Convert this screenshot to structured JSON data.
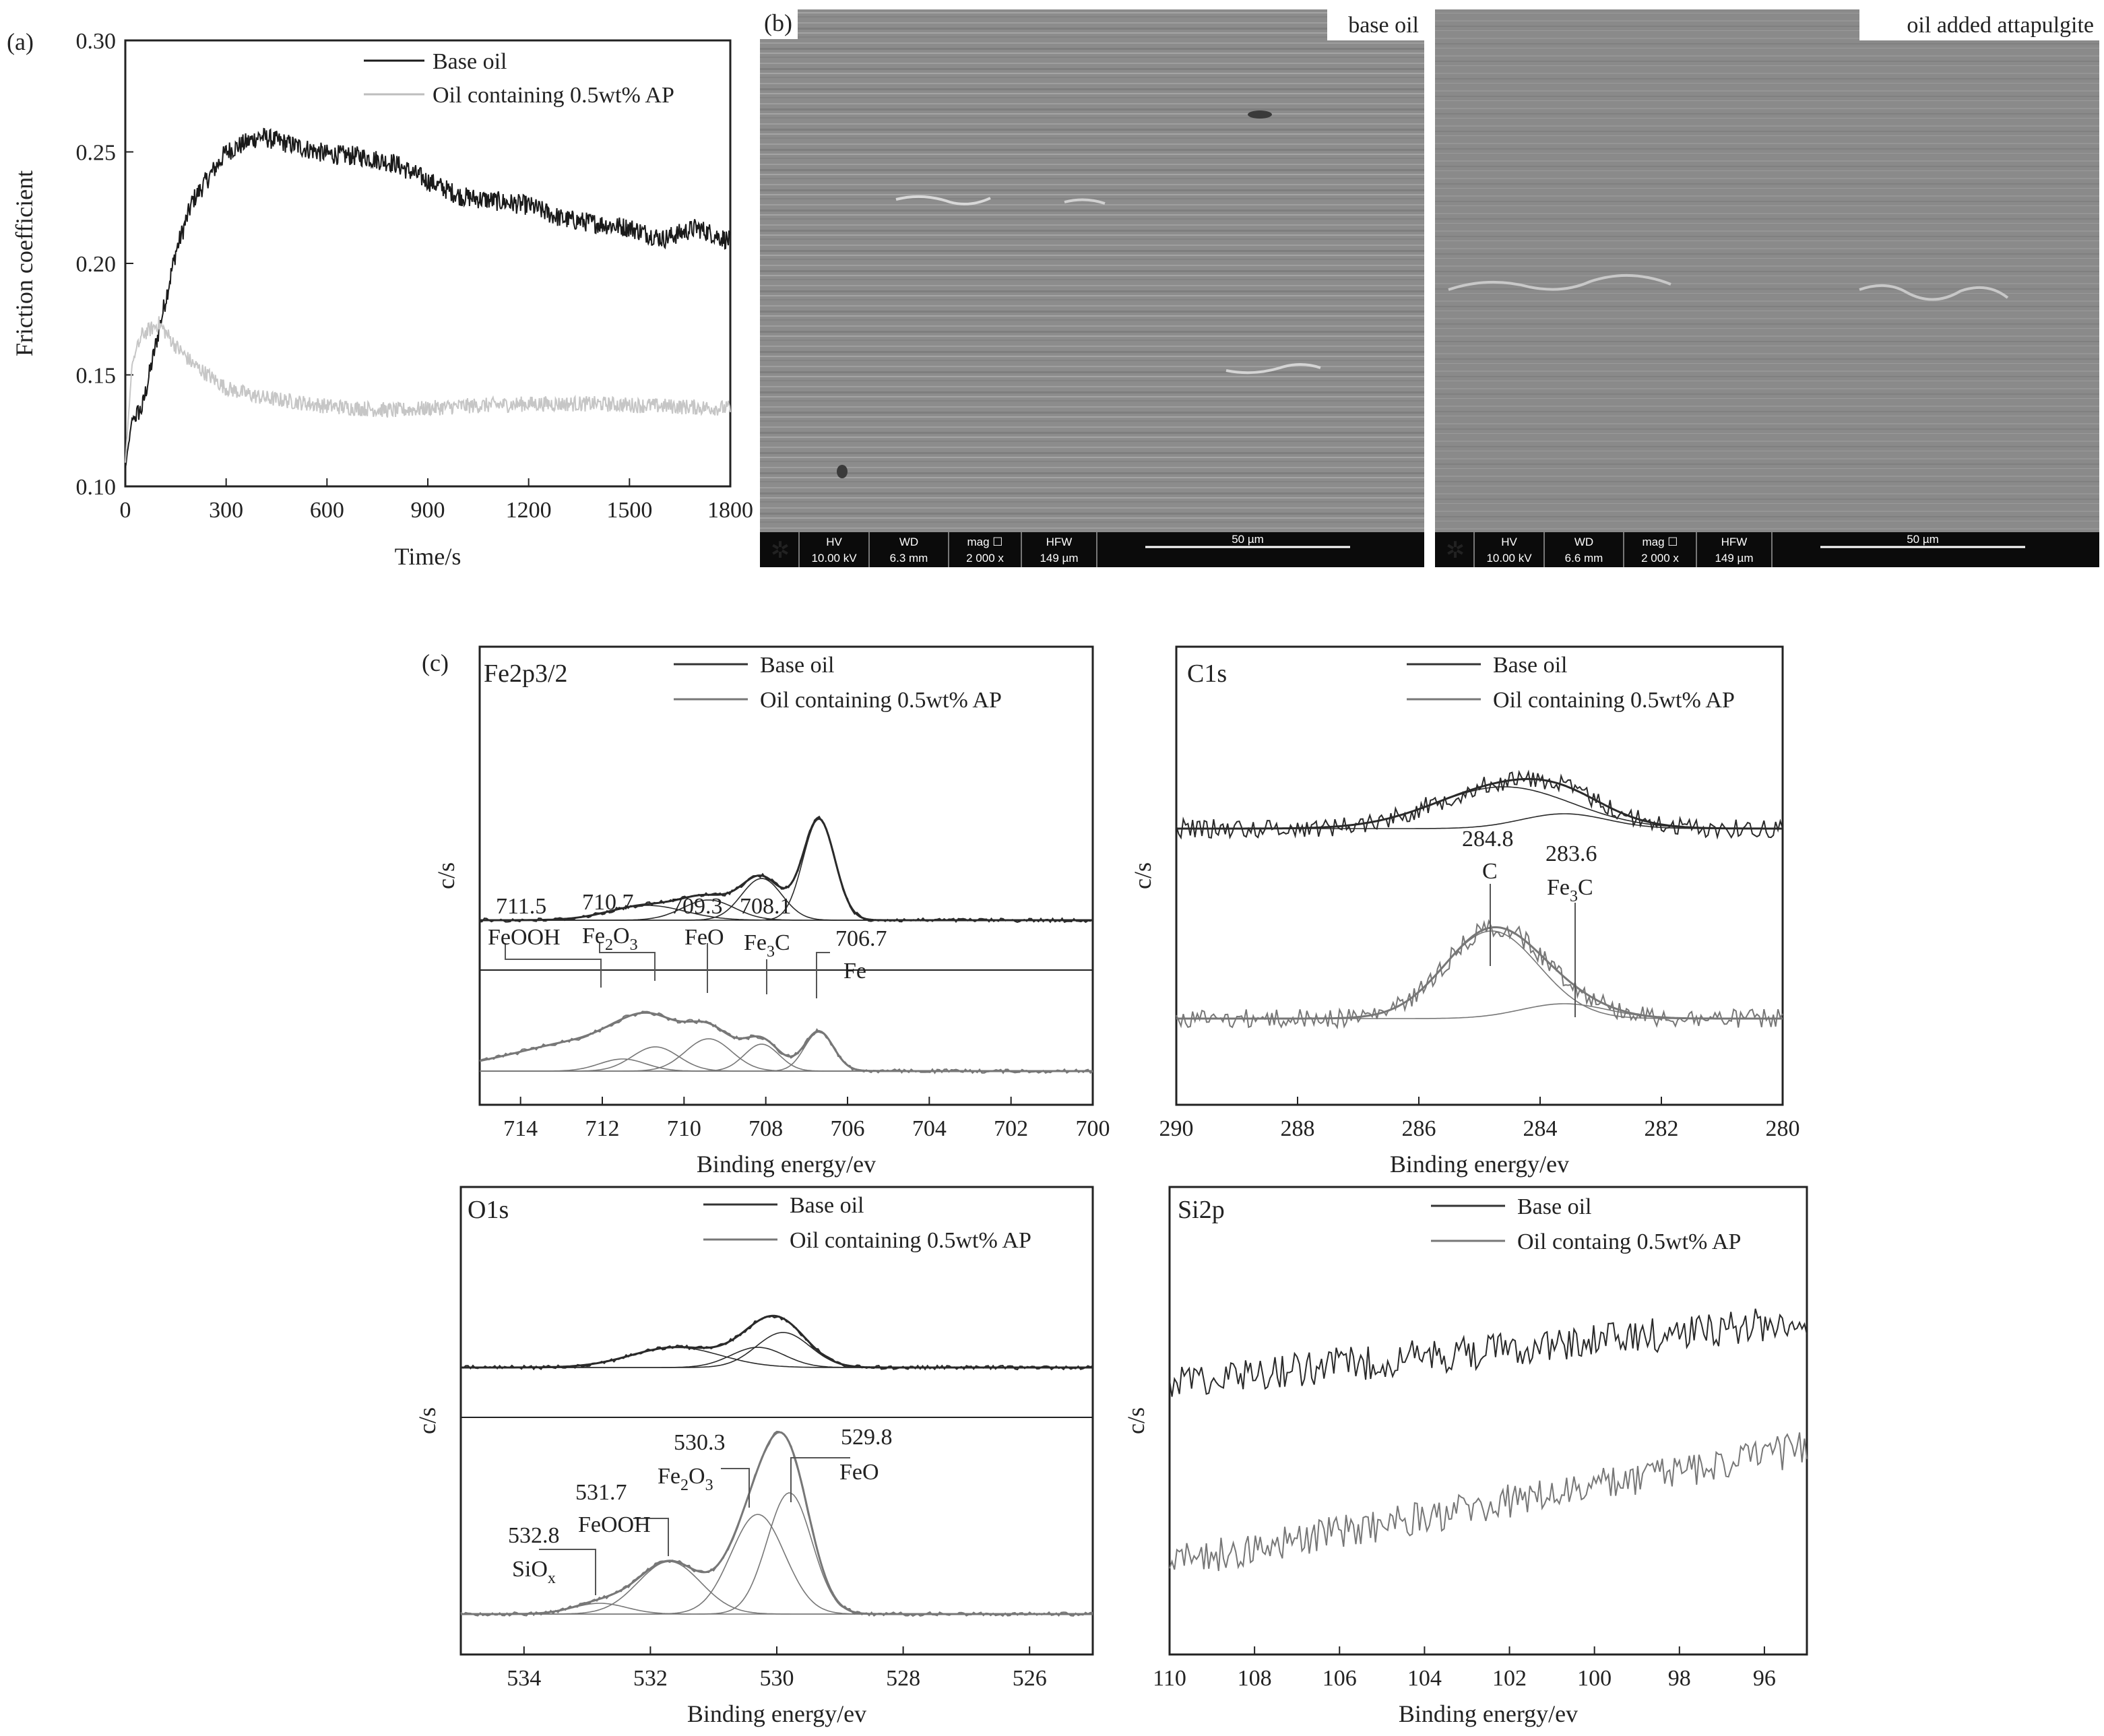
{
  "colors": {
    "series_base": "#1a1a1a",
    "series_ap": "#a8a8a8",
    "series_ap_dark": "#6e6e6e",
    "sem_bg": "#8f8f8f",
    "sem_bar": "#0b0b0b"
  },
  "panel_a": {
    "panel_label": "(a)",
    "xlabel": "Time/s",
    "ylabel": "Friction coefficient",
    "xticks": [
      "0",
      "300",
      "600",
      "900",
      "1200",
      "1500",
      "1800"
    ],
    "yticks": [
      "0.10",
      "0.15",
      "0.20",
      "0.25",
      "0.30"
    ],
    "legend": [
      "Base oil",
      "Oil containing 0.5wt% AP"
    ]
  },
  "panel_b": {
    "panel_label": "(b)",
    "images": [
      {
        "caption": "base oil",
        "hv_label": "HV",
        "hv": "10.00 kV",
        "wd_label": "WD",
        "wd": "6.3 mm",
        "mag_label": "mag ☐",
        "mag": "2 000 x",
        "hfw_label": "HFW",
        "hfw": "149 µm",
        "scale": "50 µm"
      },
      {
        "caption": "oil added attapulgite",
        "hv_label": "HV",
        "hv": "10.00 kV",
        "wd_label": "WD",
        "wd": "6.6 mm",
        "mag_label": "mag ☐",
        "mag": "2 000 x",
        "hfw_label": "HFW",
        "hfw": "149 µm",
        "scale": "50 µm"
      }
    ]
  },
  "panel_c": {
    "panel_label": "(c)",
    "plots": [
      {
        "title": "Fe2p3/2",
        "xlabel": "Binding energy/ev",
        "ylabel": "c/s",
        "xticks": [
          "714",
          "712",
          "710",
          "708",
          "706",
          "704",
          "702",
          "700"
        ],
        "legend": [
          "Base oil",
          "Oil containing 0.5wt% AP"
        ],
        "peaks": [
          {
            "energy": "711.5",
            "species": "FeOOH"
          },
          {
            "energy": "710.7",
            "species": "Fe2O3"
          },
          {
            "energy": "709.3",
            "species": "FeO"
          },
          {
            "energy": "708.1",
            "species": "Fe3C"
          },
          {
            "energy": "706.7",
            "species": "Fe"
          }
        ]
      },
      {
        "title": "C1s",
        "xlabel": "Binding energy/ev",
        "ylabel": "c/s",
        "xticks": [
          "290",
          "288",
          "286",
          "284",
          "282",
          "280"
        ],
        "legend": [
          "Base oil",
          "Oil containing 0.5wt% AP"
        ],
        "peaks": [
          {
            "energy": "284.8",
            "species": "C"
          },
          {
            "energy": "283.6",
            "species": "Fe3C"
          }
        ]
      },
      {
        "title": "O1s",
        "xlabel": "Binding energy/ev",
        "ylabel": "c/s",
        "xticks": [
          "534",
          "532",
          "530",
          "528",
          "526"
        ],
        "legend": [
          "Base oil",
          "Oil containing 0.5wt% AP"
        ],
        "peaks": [
          {
            "energy": "532.8",
            "species": "SiOx"
          },
          {
            "energy": "531.7",
            "species": "FeOOH"
          },
          {
            "energy": "530.3",
            "species": "Fe2O3"
          },
          {
            "energy": "529.8",
            "species": "FeO"
          }
        ]
      },
      {
        "title": "Si2p",
        "xlabel": "Binding energy/ev",
        "ylabel": "c/s",
        "xticks": [
          "110",
          "108",
          "106",
          "104",
          "102",
          "100",
          "98",
          "96"
        ],
        "legend": [
          "Base oil",
          "Oil containg 0.5wt% AP"
        ]
      }
    ]
  },
  "chart_data": [
    {
      "type": "line",
      "xlabel": "Time/s",
      "ylabel": "Friction coefficient",
      "xlim": [
        0,
        1800
      ],
      "ylim": [
        0.1,
        0.3
      ],
      "series": [
        {
          "name": "Base oil",
          "x": [
            0,
            20,
            50,
            100,
            150,
            200,
            300,
            400,
            500,
            600,
            700,
            800,
            900,
            1000,
            1100,
            1200,
            1300,
            1400,
            1500,
            1600,
            1700,
            1800
          ],
          "values": [
            0.108,
            0.13,
            0.135,
            0.17,
            0.205,
            0.228,
            0.25,
            0.257,
            0.253,
            0.249,
            0.248,
            0.245,
            0.237,
            0.23,
            0.228,
            0.226,
            0.22,
            0.218,
            0.216,
            0.211,
            0.216,
            0.21
          ]
        },
        {
          "name": "Oil containing 0.5wt% AP",
          "x": [
            0,
            20,
            50,
            100,
            150,
            200,
            300,
            400,
            500,
            600,
            700,
            800,
            900,
            1000,
            1200,
            1400,
            1600,
            1800
          ],
          "values": [
            0.11,
            0.155,
            0.168,
            0.173,
            0.163,
            0.155,
            0.144,
            0.14,
            0.138,
            0.136,
            0.135,
            0.134,
            0.135,
            0.136,
            0.137,
            0.137,
            0.136,
            0.135
          ]
        }
      ]
    },
    {
      "type": "line",
      "title": "Fe2p3/2",
      "xlabel": "Binding energy/ev",
      "ylabel": "c/s",
      "xlim": [
        715,
        700
      ],
      "peak_positions": [
        711.5,
        710.7,
        709.3,
        708.1,
        706.7
      ]
    },
    {
      "type": "line",
      "title": "C1s",
      "xlabel": "Binding energy/ev",
      "ylabel": "c/s",
      "xlim": [
        290,
        280
      ],
      "peak_positions": [
        284.8,
        283.6
      ]
    },
    {
      "type": "line",
      "title": "O1s",
      "xlabel": "Binding energy/ev",
      "ylabel": "c/s",
      "xlim": [
        535,
        525
      ],
      "peak_positions": [
        532.8,
        531.7,
        530.3,
        529.8
      ]
    },
    {
      "type": "line",
      "title": "Si2p",
      "xlabel": "Binding energy/ev",
      "ylabel": "c/s",
      "xlim": [
        110,
        95
      ]
    }
  ]
}
